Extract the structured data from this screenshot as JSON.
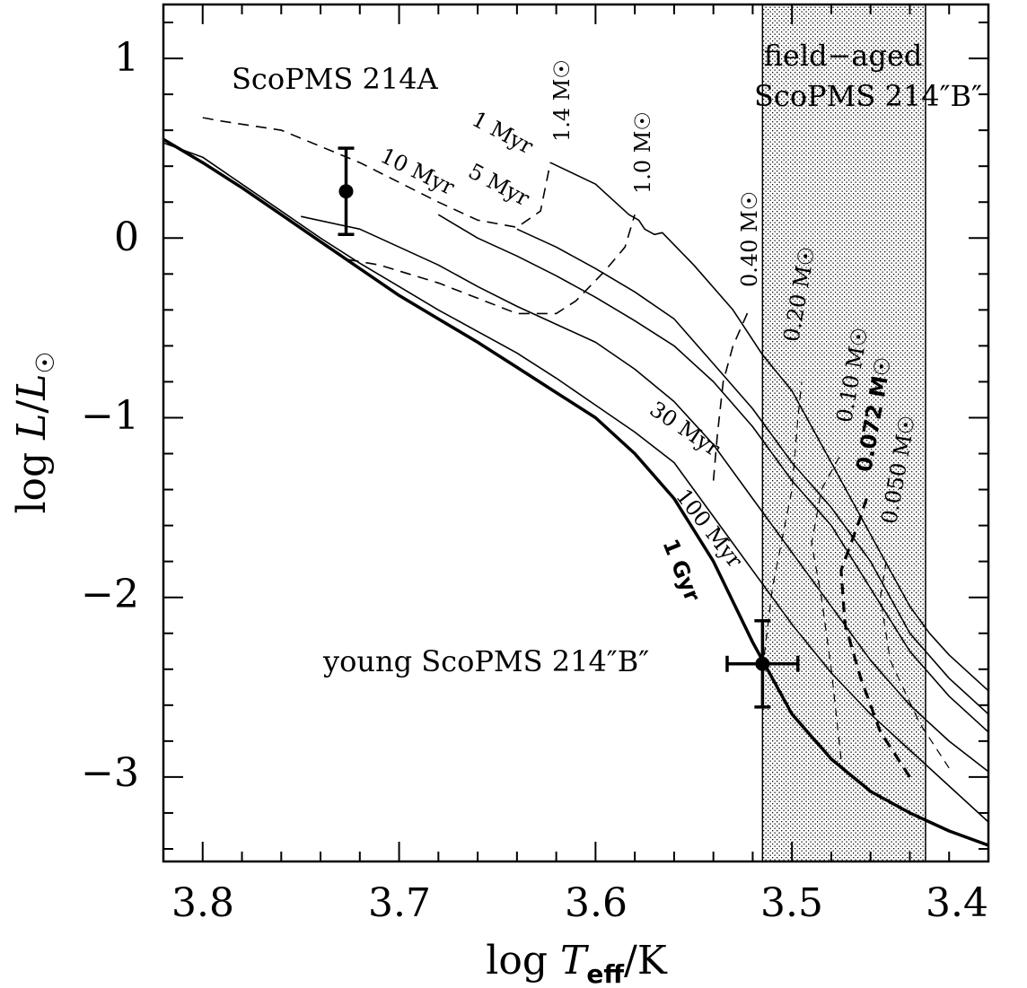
{
  "chart_data": {
    "type": "line",
    "title": "",
    "xlabel": "log T_eff/K",
    "ylabel": "log L/L☉",
    "xlim": [
      3.82,
      3.4
    ],
    "ylim": [
      -3.47,
      1.3
    ],
    "x_reversed": true,
    "x_ticks": [
      "3.8",
      "3.7",
      "3.6",
      "3.5",
      "3.4"
    ],
    "x_tick_values": [
      3.8,
      3.7,
      3.6,
      3.5,
      3.4
    ],
    "y_ticks": [
      "1",
      "0",
      "−1",
      "−2",
      "−3"
    ],
    "y_tick_values": [
      1,
      0,
      -1,
      -2,
      -3
    ],
    "grid": false,
    "shaded_band": {
      "label": "field−aged ScoPMS 214″B″",
      "x": [
        3.515,
        3.432
      ],
      "pattern": "dotted"
    },
    "annotations": {
      "primary": "ScoPMS 214A",
      "field_aged_line1": "field−aged",
      "field_aged_line2": "ScoPMS 214″B″",
      "young": "young ScoPMS 214″B″"
    },
    "points": [
      {
        "name": "ScoPMS 214A",
        "x": 3.727,
        "y": 0.26,
        "yerr": [
          0.24,
          0.24
        ]
      },
      {
        "name": "young ScoPMS 214\"B\"",
        "x": 3.515,
        "y": -2.37,
        "xerr": [
          0.018,
          0.018
        ],
        "yerr": [
          0.24,
          0.24
        ]
      }
    ],
    "isochrones": [
      {
        "label": "1 Myr",
        "style": "solid",
        "x": [
          3.623,
          3.6,
          3.595,
          3.59,
          3.583,
          3.578,
          3.575,
          3.57,
          3.566,
          3.55,
          3.53,
          3.515,
          3.5,
          3.49,
          3.48,
          3.47,
          3.46,
          3.45,
          3.44,
          3.43,
          3.42,
          3.41,
          3.4
        ],
        "y": [
          0.42,
          0.3,
          0.25,
          0.2,
          0.13,
          0.1,
          0.05,
          0.02,
          0.03,
          -0.15,
          -0.4,
          -0.65,
          -0.85,
          -1.05,
          -1.25,
          -1.45,
          -1.65,
          -1.85,
          -2.05,
          -2.2,
          -2.32,
          -2.42,
          -2.52
        ]
      },
      {
        "label": "5 Myr",
        "style": "solid",
        "x": [
          3.64,
          3.62,
          3.6,
          3.58,
          3.56,
          3.54,
          3.52,
          3.5,
          3.48,
          3.46,
          3.44,
          3.42,
          3.4
        ],
        "y": [
          0.05,
          -0.05,
          -0.17,
          -0.3,
          -0.45,
          -0.7,
          -0.95,
          -1.25,
          -1.5,
          -1.8,
          -2.2,
          -2.45,
          -2.65
        ]
      },
      {
        "label": "10 Myr",
        "style": "solid",
        "x": [
          3.68,
          3.66,
          3.64,
          3.62,
          3.6,
          3.58,
          3.56,
          3.54,
          3.52,
          3.5,
          3.48,
          3.46,
          3.44,
          3.42,
          3.4
        ],
        "y": [
          0.13,
          0.0,
          -0.1,
          -0.21,
          -0.33,
          -0.46,
          -0.6,
          -0.8,
          -1.05,
          -1.35,
          -1.6,
          -1.95,
          -2.3,
          -2.55,
          -2.75
        ]
      },
      {
        "label": "30 Myr",
        "style": "solid",
        "x": [
          3.75,
          3.72,
          3.7,
          3.68,
          3.66,
          3.64,
          3.62,
          3.6,
          3.58,
          3.56,
          3.54,
          3.52,
          3.5,
          3.48,
          3.46,
          3.44,
          3.42,
          3.4
        ],
        "y": [
          0.12,
          0.05,
          -0.05,
          -0.15,
          -0.27,
          -0.38,
          -0.48,
          -0.58,
          -0.73,
          -0.91,
          -1.15,
          -1.45,
          -1.75,
          -2.05,
          -2.35,
          -2.6,
          -2.8,
          -2.97
        ]
      },
      {
        "label": "100 Myr",
        "style": "solid",
        "x": [
          3.82,
          3.8,
          3.78,
          3.76,
          3.74,
          3.72,
          3.7,
          3.68,
          3.66,
          3.64,
          3.62,
          3.6,
          3.58,
          3.56,
          3.54,
          3.52,
          3.5,
          3.48,
          3.46,
          3.44,
          3.42,
          3.4
        ],
        "y": [
          0.53,
          0.45,
          0.3,
          0.15,
          0.0,
          -0.14,
          -0.27,
          -0.4,
          -0.52,
          -0.64,
          -0.78,
          -0.93,
          -1.08,
          -1.25,
          -1.55,
          -1.85,
          -2.15,
          -2.42,
          -2.65,
          -2.85,
          -3.05,
          -3.25
        ]
      },
      {
        "label": "1 Gyr",
        "style": "bold",
        "x": [
          3.82,
          3.8,
          3.78,
          3.76,
          3.74,
          3.72,
          3.7,
          3.68,
          3.66,
          3.64,
          3.62,
          3.6,
          3.58,
          3.56,
          3.54,
          3.52,
          3.5,
          3.48,
          3.46,
          3.44,
          3.42,
          3.4
        ],
        "y": [
          0.55,
          0.42,
          0.28,
          0.13,
          -0.02,
          -0.17,
          -0.32,
          -0.45,
          -0.58,
          -0.72,
          -0.86,
          -1.0,
          -1.2,
          -1.45,
          -1.8,
          -2.25,
          -2.65,
          -2.9,
          -3.08,
          -3.2,
          -3.3,
          -3.38
        ]
      }
    ],
    "mass_tracks": [
      {
        "label": "1.4 M☉",
        "style": "dashed",
        "x": [
          3.8,
          3.79,
          3.76,
          3.72,
          3.68,
          3.66,
          3.64,
          3.628,
          3.623
        ],
        "y": [
          0.67,
          0.65,
          0.6,
          0.42,
          0.2,
          0.1,
          0.06,
          0.15,
          0.42
        ]
      },
      {
        "label": "1.0 M☉",
        "style": "dashed",
        "x": [
          3.726,
          3.71,
          3.68,
          3.64,
          3.62,
          3.61,
          3.595,
          3.585,
          3.58
        ],
        "y": [
          -0.12,
          -0.15,
          -0.25,
          -0.42,
          -0.42,
          -0.35,
          -0.18,
          -0.05,
          0.13
        ]
      },
      {
        "label": "0.40 M☉",
        "style": "dashed",
        "x": [
          3.54,
          3.538,
          3.535,
          3.53,
          3.522
        ],
        "y": [
          -1.35,
          -1.1,
          -0.8,
          -0.6,
          -0.4
        ]
      },
      {
        "label": "0.20 M☉",
        "style": "dashed-thin",
        "x": [
          3.515,
          3.51,
          3.5,
          3.497,
          3.495
        ],
        "y": [
          -2.4,
          -1.95,
          -1.4,
          -1.0,
          -0.8
        ]
      },
      {
        "label": "0.10 M☉",
        "style": "dashed-thin",
        "x": [
          3.475,
          3.48,
          3.485,
          3.49,
          3.485,
          3.475
        ],
        "y": [
          -2.9,
          -2.4,
          -2.0,
          -1.7,
          -1.4,
          -1.2
        ]
      },
      {
        "label": "0.072 M☉",
        "style": "bold-dashed",
        "x": [
          3.44,
          3.455,
          3.465,
          3.473,
          3.475,
          3.465,
          3.462
        ],
        "y": [
          -3.0,
          -2.75,
          -2.45,
          -2.15,
          -1.85,
          -1.55,
          -1.45
        ]
      },
      {
        "label": "0.050 M☉",
        "style": "dashed-thin",
        "x": [
          3.42,
          3.435,
          3.45,
          3.455,
          3.452
        ],
        "y": [
          -2.95,
          -2.7,
          -2.35,
          -2.0,
          -1.8
        ]
      }
    ],
    "curve_labels": {
      "one_myr": "1 Myr",
      "five_myr": "5 Myr",
      "ten_myr": "10 Myr",
      "thirty_myr": "30 Myr",
      "hundred_myr": "100 Myr",
      "one_gyr": "1 Gyr",
      "m14": "1.4 M☉",
      "m10": "1.0 M☉",
      "m040": "0.40 M☉",
      "m020": "0.20 M☉",
      "m010": "0.10 M☉",
      "m0072": "0.072 M☉",
      "m0050": "0.050 M☉"
    }
  }
}
